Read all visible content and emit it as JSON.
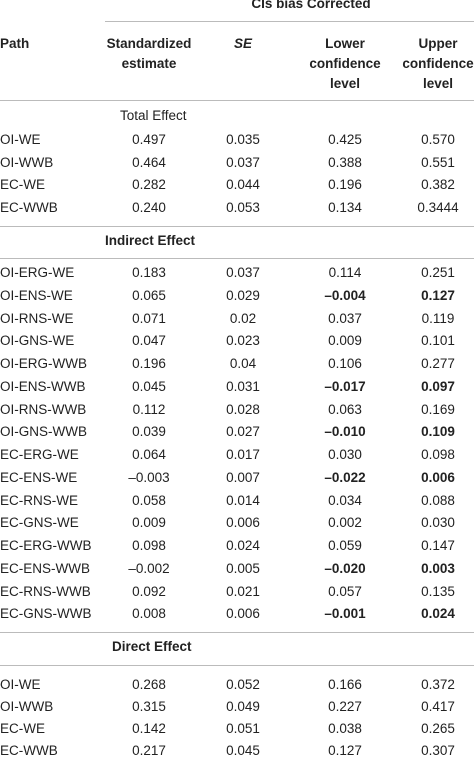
{
  "header": {
    "group": "CIs bias Corrected",
    "columns": [
      "Path",
      "Standardized estimate",
      "SE",
      "Lower confidence level",
      "Upper confidence level"
    ]
  },
  "sections": [
    {
      "title": "Total Effect",
      "title_bold": false,
      "bold_rows": [],
      "rows": [
        [
          "OI-WE",
          "0.497",
          "0.035",
          "0.425",
          "0.570"
        ],
        [
          "OI-WWB",
          "0.464",
          "0.037",
          "0.388",
          "0.551"
        ],
        [
          "EC-WE",
          "0.282",
          "0.044",
          "0.196",
          "0.382"
        ],
        [
          "EC-WWB",
          "0.240",
          "0.053",
          "0.134",
          "0.3444"
        ]
      ]
    },
    {
      "title": "Indirect Effect",
      "title_bold": true,
      "bold_rows": [
        1,
        5,
        7,
        9,
        13,
        15
      ],
      "rows": [
        [
          "OI-ERG-WE",
          "0.183",
          "0.037",
          "0.114",
          "0.251"
        ],
        [
          "OI-ENS-WE",
          "0.065",
          "0.029",
          "–0.004",
          "0.127"
        ],
        [
          "OI-RNS-WE",
          "0.071",
          "0.02",
          "0.037",
          "0.119"
        ],
        [
          "OI-GNS-WE",
          "0.047",
          "0.023",
          "0.009",
          "0.101"
        ],
        [
          "OI-ERG-WWB",
          "0.196",
          "0.04",
          "0.106",
          "0.277"
        ],
        [
          "OI-ENS-WWB",
          "0.045",
          "0.031",
          "–0.017",
          "0.097"
        ],
        [
          "OI-RNS-WWB",
          "0.112",
          "0.028",
          "0.063",
          "0.169"
        ],
        [
          "OI-GNS-WWB",
          "0.039",
          "0.027",
          "–0.010",
          "0.109"
        ],
        [
          "EC-ERG-WE",
          "0.064",
          "0.017",
          "0.030",
          "0.098"
        ],
        [
          "EC-ENS-WE",
          "–0.003",
          "0.007",
          "–0.022",
          "0.006"
        ],
        [
          "EC-RNS-WE",
          "0.058",
          "0.014",
          "0.034",
          "0.088"
        ],
        [
          "EC-GNS-WE",
          "0.009",
          "0.006",
          "0.002",
          "0.030"
        ],
        [
          "EC-ERG-WWB",
          "0.098",
          "0.024",
          "0.059",
          "0.147"
        ],
        [
          "EC-ENS-WWB",
          "–0.002",
          "0.005",
          "–0.020",
          "0.003"
        ],
        [
          "EC-RNS-WWB",
          "0.092",
          "0.021",
          "0.057",
          "0.135"
        ],
        [
          "EC-GNS-WWB",
          "0.008",
          "0.006",
          "–0.001",
          "0.024"
        ]
      ]
    },
    {
      "title": "Direct Effect",
      "title_bold": true,
      "bold_rows": [],
      "rows": [
        [
          "OI-WE",
          "0.268",
          "0.052",
          "0.166",
          "0.372"
        ],
        [
          "OI-WWB",
          "0.315",
          "0.049",
          "0.227",
          "0.417"
        ],
        [
          "EC-WE",
          "0.142",
          "0.051",
          "0.038",
          "0.265"
        ],
        [
          "EC-WWB",
          "0.217",
          "0.045",
          "0.127",
          "0.307"
        ]
      ]
    }
  ]
}
